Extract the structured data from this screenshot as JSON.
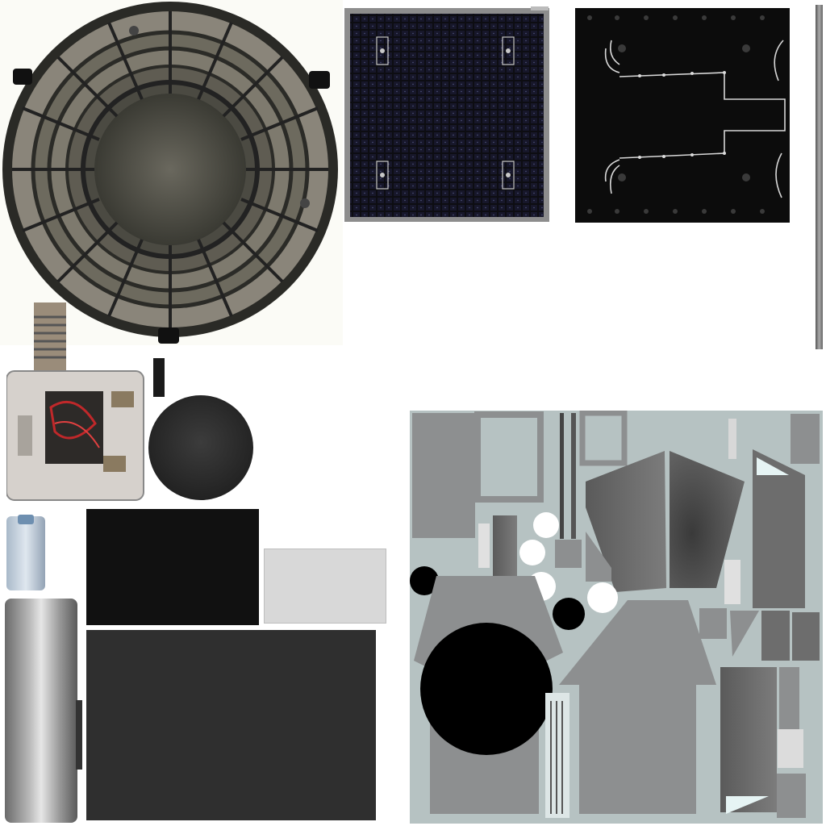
{
  "atlas": {
    "background": "#ffffff",
    "colors": {
      "dish_dark": "#2a2a26",
      "dish_panel": "#8a857a",
      "dish_center": "#5b5d50",
      "solar_dark": "#0d0d10",
      "solar_frame": "#8d8d8d",
      "board_black": "#0c0c0c",
      "uv_sheet": "#b6c2c2",
      "uv_gray": "#8d8f90",
      "cylinder": "#a7a7a7"
    },
    "regions": [
      {
        "name": "antenna-dish-texture",
        "icon": "radial-dish"
      },
      {
        "name": "solar-panel-texture",
        "icon": "grid-cells"
      },
      {
        "name": "circuit-board-texture",
        "icon": "wiring"
      },
      {
        "name": "edge-strip-texture",
        "icon": "strip"
      },
      {
        "name": "mechanism-photo-texture",
        "icon": "hardware"
      },
      {
        "name": "dark-sphere-texture",
        "icon": "sphere"
      },
      {
        "name": "black-panel-texture",
        "icon": "flat"
      },
      {
        "name": "light-gray-panel-texture",
        "icon": "flat"
      },
      {
        "name": "dark-gray-panel-texture",
        "icon": "flat"
      },
      {
        "name": "metal-cylinder-texture",
        "icon": "cylinder"
      },
      {
        "name": "uv-parts-sheet",
        "icon": "uv-layout"
      }
    ]
  }
}
